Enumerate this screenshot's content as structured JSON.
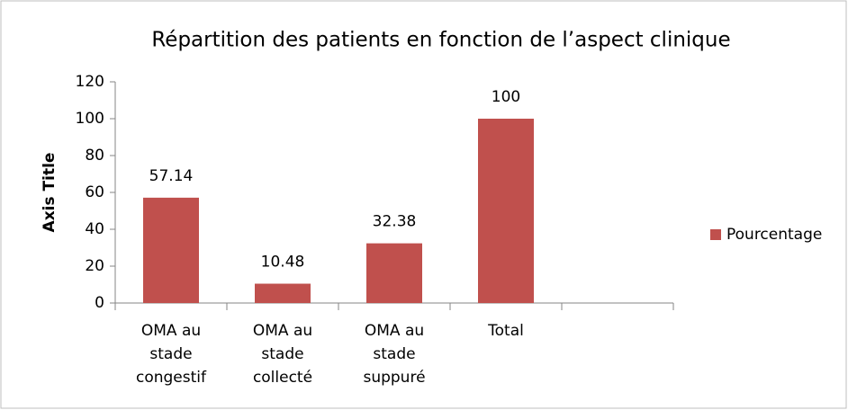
{
  "chart_data": {
    "type": "bar",
    "title": "Répartition des patients en fonction de l’aspect clinique",
    "y_label": "Axis Title",
    "categories": [
      "OMA au stade congestif",
      "OMA au stade collecté",
      "OMA au stade suppuré",
      "Total",
      null
    ],
    "series": [
      {
        "name": "Pourcentage",
        "color": "#c0504d",
        "values": [
          57.14,
          10.48,
          32.38,
          100,
          null
        ]
      }
    ],
    "ylim": [
      0,
      120
    ],
    "yticks": [
      0,
      20,
      40,
      60,
      80,
      100,
      120
    ],
    "legend": "right",
    "grid": false
  }
}
